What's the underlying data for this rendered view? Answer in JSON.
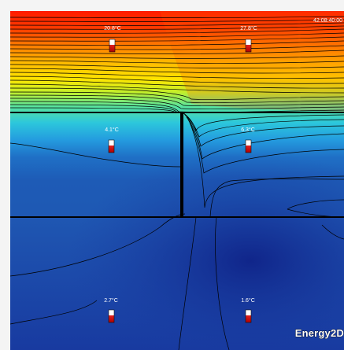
{
  "app": {
    "brand": "Energy2D"
  },
  "simulation": {
    "clock": "42:08:40:00"
  },
  "thermometers": [
    {
      "id": "upper-left",
      "reading": "20.8°C"
    },
    {
      "id": "upper-right",
      "reading": "27.8°C"
    },
    {
      "id": "middle-left",
      "reading": "4.1°C"
    },
    {
      "id": "middle-right",
      "reading": "6.3°C"
    },
    {
      "id": "lower-left",
      "reading": "2.7°C"
    },
    {
      "id": "lower-right",
      "reading": "1.6°C"
    }
  ],
  "colors": {
    "hot": "#ff1a00",
    "warm": "#ffd000",
    "mild": "#39e3a3",
    "cool": "#25a9e6",
    "cold": "#1f55b3",
    "deep": "#142c8a",
    "contour": "#000000"
  }
}
